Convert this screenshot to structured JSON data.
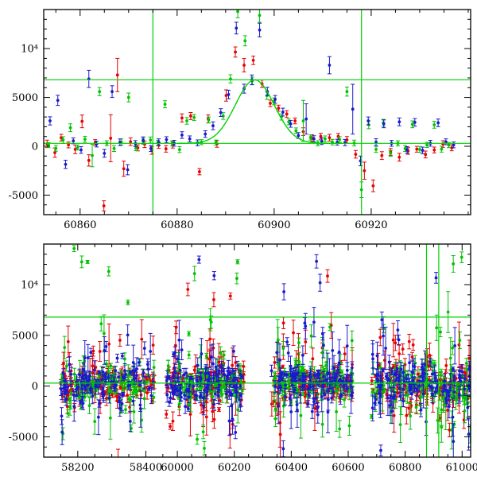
{
  "palette": {
    "red": "#e60000",
    "green": "#00c300",
    "blue": "#1a1acc",
    "line_green": "#00d200",
    "frame": "#000000",
    "background": "#ffffff"
  },
  "chart_data": [
    {
      "type": "scatter",
      "panel": "top",
      "title": "",
      "xlabel": "",
      "ylabel": "",
      "xlim": [
        60852.5,
        60940.5
      ],
      "ylim": [
        -7000,
        14000
      ],
      "xticks": [
        60860,
        60880,
        60900,
        60920
      ],
      "xtick_labels": [
        "60860",
        "60880",
        "60900",
        "60920"
      ],
      "x_minor_step": 5,
      "yticks": [
        -5000,
        0,
        5000,
        10000
      ],
      "ytick_labels": [
        "-5000",
        "0",
        "5000",
        "10⁴"
      ],
      "y_minor_step": 1000,
      "grid": false,
      "legend": false,
      "hlines": [
        {
          "y": 6800
        },
        {
          "y": 300
        }
      ],
      "vlines": [
        {
          "x": 60875
        },
        {
          "x": 60918
        }
      ],
      "model_curve": {
        "shape": "gaussian",
        "baseline": 300,
        "amplitude": 6500,
        "center": 60896,
        "sigma": 4.0,
        "x_range": [
          60880,
          60914
        ]
      },
      "series": [
        {
          "name": "red",
          "color_key": "red",
          "points": [
            [
              60853.2,
              250,
              380
            ],
            [
              60854.8,
              -650,
              480
            ],
            [
              60856.1,
              880,
              340
            ],
            [
              60857.6,
              140,
              300
            ],
            [
              60859.0,
              -320,
              440
            ],
            [
              60860.4,
              2550,
              650
            ],
            [
              60861.8,
              -1450,
              580
            ],
            [
              60863.1,
              380,
              300
            ],
            [
              60864.9,
              -6100,
              520
            ],
            [
              60866.3,
              820,
              2400
            ],
            [
              60867.7,
              7300,
              1700
            ],
            [
              60869.0,
              -2300,
              780
            ],
            [
              60870.4,
              470,
              390
            ],
            [
              60871.9,
              -160,
              310
            ],
            [
              60873.3,
              210,
              340
            ],
            [
              60874.8,
              -420,
              400
            ],
            [
              60876.2,
              90,
              300
            ],
            [
              60877.7,
              -260,
              340
            ],
            [
              60879.1,
              130,
              310
            ],
            [
              60881.0,
              2900,
              420
            ],
            [
              60882.8,
              3100,
              360
            ],
            [
              60884.6,
              -2600,
              320
            ],
            [
              60886.4,
              2800,
              410
            ],
            [
              60888.2,
              240,
              340
            ],
            [
              60890.1,
              5200,
              580
            ],
            [
              60892.0,
              9650,
              520
            ],
            [
              60893.8,
              8300,
              690
            ],
            [
              60895.7,
              8800,
              430
            ],
            [
              60897.5,
              6400,
              380
            ],
            [
              60899.2,
              4400,
              340
            ],
            [
              60900.9,
              3900,
              310
            ],
            [
              60902.6,
              3300,
              350
            ],
            [
              60904.3,
              2600,
              300
            ],
            [
              60906.0,
              1500,
              390
            ],
            [
              60907.8,
              840,
              340
            ],
            [
              60909.6,
              1020,
              300
            ],
            [
              60911.4,
              880,
              340
            ],
            [
              60913.2,
              1010,
              300
            ],
            [
              60915.0,
              660,
              340
            ],
            [
              60916.8,
              -820,
              390
            ],
            [
              60918.6,
              -2500,
              880
            ],
            [
              60920.4,
              -4050,
              600
            ],
            [
              60922.2,
              -950,
              400
            ],
            [
              60924.0,
              -580,
              350
            ],
            [
              60925.8,
              -1120,
              400
            ],
            [
              60927.6,
              -480,
              340
            ],
            [
              60929.4,
              -300,
              300
            ],
            [
              60931.2,
              -840,
              350
            ],
            [
              60933.0,
              -380,
              300
            ],
            [
              60934.8,
              230,
              340
            ],
            [
              60936.6,
              -150,
              310
            ]
          ]
        },
        {
          "name": "green",
          "color_key": "green",
          "points": [
            [
              60853.5,
              120,
              260
            ],
            [
              60855.0,
              -210,
              300
            ],
            [
              60856.5,
              640,
              340
            ],
            [
              60858.0,
              1900,
              400
            ],
            [
              60859.5,
              -120,
              260
            ],
            [
              60861.0,
              720,
              300
            ],
            [
              60862.5,
              -950,
              1150
            ],
            [
              60864.0,
              5600,
              420
            ],
            [
              60865.5,
              310,
              260
            ],
            [
              60867.0,
              -230,
              300
            ],
            [
              60868.5,
              430,
              320
            ],
            [
              60870.0,
              5000,
              450
            ],
            [
              60871.5,
              -190,
              260
            ],
            [
              60873.0,
              520,
              300
            ],
            [
              60874.5,
              640,
              310
            ],
            [
              60876.0,
              340,
              280
            ],
            [
              60877.5,
              4300,
              360
            ],
            [
              60879.0,
              290,
              260
            ],
            [
              60880.5,
              -340,
              300
            ],
            [
              60882.0,
              2600,
              340
            ],
            [
              60883.5,
              2950,
              310
            ],
            [
              60885.0,
              420,
              260
            ],
            [
              60886.5,
              2700,
              300
            ],
            [
              60888.0,
              380,
              260
            ],
            [
              60889.5,
              3100,
              340
            ],
            [
              60891.0,
              6900,
              420
            ],
            [
              60892.5,
              13800,
              640
            ],
            [
              60894.0,
              10800,
              520
            ],
            [
              60895.5,
              6700,
              380
            ],
            [
              60897.0,
              13400,
              700
            ],
            [
              60898.5,
              5200,
              400
            ],
            [
              60900.0,
              4600,
              350
            ],
            [
              60901.5,
              3000,
              310
            ],
            [
              60903.0,
              2500,
              300
            ],
            [
              60904.5,
              1600,
              280
            ],
            [
              60906.0,
              2600,
              2100
            ],
            [
              60907.5,
              900,
              260
            ],
            [
              60909.0,
              310,
              260
            ],
            [
              60910.5,
              760,
              300
            ],
            [
              60912.0,
              420,
              280
            ],
            [
              60913.5,
              690,
              300
            ],
            [
              60915.0,
              5600,
              460
            ],
            [
              60916.5,
              330,
              300
            ],
            [
              60918.0,
              -4450,
              800
            ],
            [
              60919.5,
              2200,
              400
            ],
            [
              60921.0,
              -320,
              300
            ],
            [
              60922.5,
              2400,
              360
            ],
            [
              60924.0,
              -720,
              300
            ],
            [
              60925.5,
              300,
              260
            ],
            [
              60927.0,
              -230,
              300
            ],
            [
              60928.5,
              2250,
              350
            ],
            [
              60930.0,
              -320,
              300
            ],
            [
              60931.5,
              140,
              260
            ],
            [
              60933.0,
              2200,
              350
            ],
            [
              60934.5,
              -300,
              300
            ],
            [
              60936.0,
              120,
              260
            ]
          ]
        },
        {
          "name": "blue",
          "color_key": "blue",
          "points": [
            [
              60853.8,
              2600,
              420
            ],
            [
              60855.4,
              4700,
              520
            ],
            [
              60857.0,
              -1850,
              420
            ],
            [
              60858.6,
              560,
              300
            ],
            [
              60860.2,
              -380,
              340
            ],
            [
              60861.8,
              6900,
              880
            ],
            [
              60863.4,
              230,
              300
            ],
            [
              60865.0,
              -720,
              400
            ],
            [
              60866.6,
              5600,
              600
            ],
            [
              60868.2,
              410,
              340
            ],
            [
              60869.8,
              -2400,
              520
            ],
            [
              60871.4,
              280,
              300
            ],
            [
              60873.0,
              620,
              340
            ],
            [
              60874.6,
              -230,
              300
            ],
            [
              60876.2,
              420,
              340
            ],
            [
              60877.8,
              680,
              300
            ],
            [
              60879.4,
              310,
              300
            ],
            [
              60881.0,
              1150,
              340
            ],
            [
              60882.6,
              760,
              300
            ],
            [
              60884.2,
              350,
              300
            ],
            [
              60885.8,
              1250,
              340
            ],
            [
              60887.4,
              2100,
              400
            ],
            [
              60889.0,
              3450,
              400
            ],
            [
              60890.6,
              5300,
              440
            ],
            [
              60892.2,
              12100,
              600
            ],
            [
              60893.8,
              5900,
              460
            ],
            [
              60895.4,
              6800,
              500
            ],
            [
              60897.0,
              11900,
              700
            ],
            [
              60898.6,
              5600,
              440
            ],
            [
              60900.2,
              4800,
              400
            ],
            [
              60901.8,
              3500,
              400
            ],
            [
              60903.4,
              2300,
              350
            ],
            [
              60905.0,
              1100,
              300
            ],
            [
              60906.6,
              2800,
              1550
            ],
            [
              60908.2,
              760,
              320
            ],
            [
              60909.8,
              520,
              340
            ],
            [
              60911.4,
              8300,
              880
            ],
            [
              60913.0,
              420,
              300
            ],
            [
              60914.6,
              380,
              320
            ],
            [
              60916.2,
              3800,
              2550
            ],
            [
              60917.8,
              -1500,
              500
            ],
            [
              60919.4,
              2600,
              400
            ],
            [
              60921.0,
              430,
              340
            ],
            [
              60922.6,
              2300,
              400
            ],
            [
              60924.2,
              300,
              300
            ],
            [
              60925.8,
              2500,
              400
            ],
            [
              60927.4,
              -380,
              340
            ],
            [
              60929.0,
              2450,
              390
            ],
            [
              60930.6,
              -420,
              340
            ],
            [
              60932.2,
              310,
              300
            ],
            [
              60933.8,
              2400,
              390
            ],
            [
              60935.4,
              460,
              300
            ],
            [
              60937.0,
              140,
              300
            ]
          ]
        }
      ]
    },
    {
      "type": "scatter",
      "panel": "bottom",
      "title": "",
      "xlabel": "",
      "ylabel": "",
      "x_break": {
        "segments": [
          [
            58100,
            58455
          ],
          [
            59955,
            61030
          ]
        ],
        "fractions": [
          0.283,
          0.717
        ]
      },
      "ylim": [
        -7000,
        14000
      ],
      "xticks": [
        58200,
        58400,
        60000,
        60200,
        60400,
        60600,
        60800,
        61000
      ],
      "xtick_labels": [
        "58200",
        "58400",
        "60000",
        "60200",
        "60400",
        "60600",
        "60800",
        "61000"
      ],
      "x_minor_step": 50,
      "yticks": [
        -5000,
        0,
        5000,
        10000
      ],
      "ytick_labels": [
        "-5000",
        "0",
        "5000",
        "10⁴"
      ],
      "y_minor_step": 1000,
      "grid": false,
      "legend": false,
      "hlines": [
        {
          "y": 6800
        },
        {
          "y": 300
        }
      ],
      "vlines": [
        {
          "x": 60875
        },
        {
          "x": 60918
        }
      ],
      "series_colors": [
        "red",
        "green",
        "blue"
      ],
      "clusters": [
        {
          "x_range": [
            58150,
            58425
          ],
          "points_per_color": 115,
          "center": 200,
          "core_sigma": 850,
          "outlier_frac": 0.2,
          "outlier_scale": 2600,
          "err_range": [
            150,
            800
          ]
        },
        {
          "x_range": [
            59960,
            60235
          ],
          "points_per_color": 115,
          "center": 250,
          "core_sigma": 900,
          "outlier_frac": 0.2,
          "outlier_scale": 2700,
          "err_range": [
            150,
            800
          ]
        },
        {
          "x_range": [
            60330,
            60615
          ],
          "points_per_color": 120,
          "center": 250,
          "core_sigma": 950,
          "outlier_frac": 0.22,
          "outlier_scale": 2800,
          "err_range": [
            150,
            850
          ]
        },
        {
          "x_range": [
            60680,
            61030
          ],
          "points_per_color": 130,
          "center": 250,
          "core_sigma": 950,
          "outlier_frac": 0.24,
          "outlier_scale": 3000,
          "err_range": [
            150,
            900
          ]
        }
      ]
    }
  ]
}
